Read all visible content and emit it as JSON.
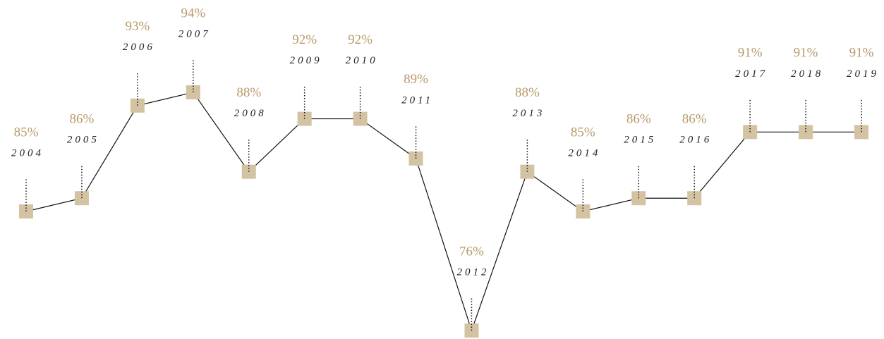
{
  "chart_data": {
    "type": "line",
    "categories": [
      "2004",
      "2005",
      "2006",
      "2007",
      "2008",
      "2009",
      "2010",
      "2011",
      "2012",
      "2013",
      "2014",
      "2015",
      "2016",
      "2017",
      "2018",
      "2019"
    ],
    "values": [
      85,
      86,
      93,
      94,
      88,
      92,
      92,
      89,
      76,
      88,
      85,
      86,
      86,
      91,
      91,
      91
    ],
    "value_labels": [
      "85%",
      "86%",
      "93%",
      "94%",
      "88%",
      "92%",
      "92%",
      "89%",
      "76%",
      "88%",
      "85%",
      "86%",
      "86%",
      "91%",
      "91%",
      "91%"
    ],
    "color": "#d3c3a2",
    "line_color": "#111111",
    "ylim": [
      76,
      94
    ]
  }
}
